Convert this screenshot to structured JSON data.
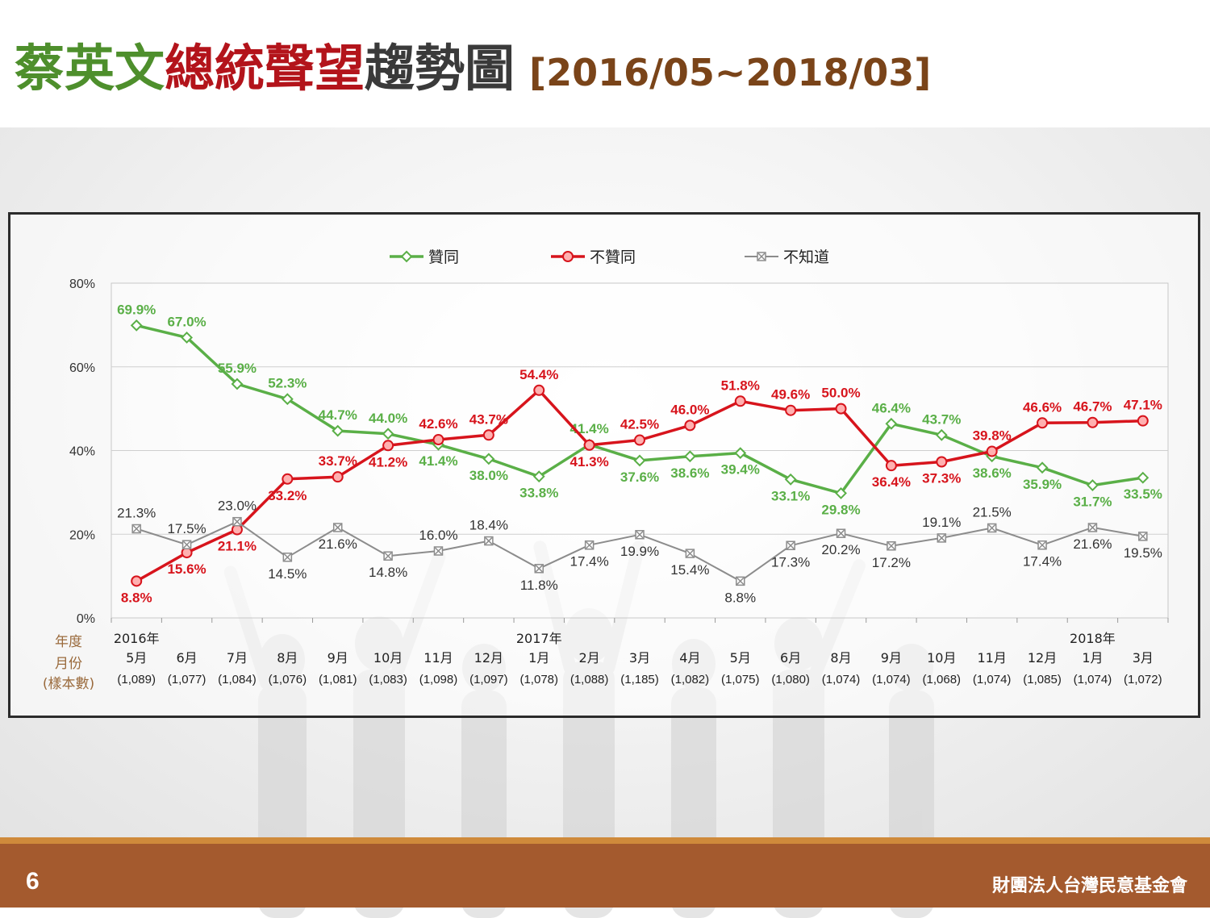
{
  "title": {
    "part1": "蔡英文",
    "part2": "總統聲望",
    "part3": "趨勢圖",
    "range": "[2016/05~2018/03]",
    "colors": {
      "part1": "#4e8f2c",
      "part2": "#b3141b",
      "part3": "#3a3a3a",
      "range": "#7a4419"
    }
  },
  "footer": {
    "page_number": "6",
    "organization": "財團法人台灣民意基金會"
  },
  "chart_data": {
    "type": "line",
    "ylim": [
      0,
      80
    ],
    "yticks": [
      "0%",
      "20%",
      "40%",
      "60%",
      "80%"
    ],
    "grid": true,
    "legend_position": "top",
    "row_labels": [
      "年度",
      "月份",
      "(樣本數)"
    ],
    "categories": [
      {
        "year": "2016年",
        "month": "5月",
        "sample": "(1,089)"
      },
      {
        "year": "",
        "month": "6月",
        "sample": "(1,077)"
      },
      {
        "year": "",
        "month": "7月",
        "sample": "(1,084)"
      },
      {
        "year": "",
        "month": "8月",
        "sample": "(1,076)"
      },
      {
        "year": "",
        "month": "9月",
        "sample": "(1,081)"
      },
      {
        "year": "",
        "month": "10月",
        "sample": "(1,083)"
      },
      {
        "year": "",
        "month": "11月",
        "sample": "(1,098)"
      },
      {
        "year": "",
        "month": "12月",
        "sample": "(1,097)"
      },
      {
        "year": "2017年",
        "month": "1月",
        "sample": "(1,078)"
      },
      {
        "year": "",
        "month": "2月",
        "sample": "(1,088)"
      },
      {
        "year": "",
        "month": "3月",
        "sample": "(1,185)"
      },
      {
        "year": "",
        "month": "4月",
        "sample": "(1,082)"
      },
      {
        "year": "",
        "month": "5月",
        "sample": "(1,075)"
      },
      {
        "year": "",
        "month": "6月",
        "sample": "(1,080)"
      },
      {
        "year": "",
        "month": "8月",
        "sample": "(1,074)"
      },
      {
        "year": "",
        "month": "9月",
        "sample": "(1,074)"
      },
      {
        "year": "",
        "month": "10月",
        "sample": "(1,068)"
      },
      {
        "year": "",
        "month": "11月",
        "sample": "(1,074)"
      },
      {
        "year": "",
        "month": "12月",
        "sample": "(1,085)"
      },
      {
        "year": "2018年",
        "month": "1月",
        "sample": "(1,074)"
      },
      {
        "year": "",
        "month": "3月",
        "sample": "(1,072)"
      }
    ],
    "series": [
      {
        "name": "贊同",
        "color": "#5aaf47",
        "marker": "diamond",
        "values": [
          69.9,
          67.0,
          55.9,
          52.3,
          44.7,
          44.0,
          41.4,
          38.0,
          33.8,
          41.4,
          37.6,
          38.6,
          39.4,
          33.1,
          29.8,
          46.4,
          43.7,
          38.6,
          35.9,
          31.7,
          33.5
        ],
        "labels": [
          "69.9%",
          "67.0%",
          "55.9%",
          "52.3%",
          "44.7%",
          "44.0%",
          "41.4%",
          "38.0%",
          "33.8%",
          "41.4%",
          "37.6%",
          "38.6%",
          "39.4%",
          "33.1%",
          "29.8%",
          "46.4%",
          "43.7%",
          "38.6%",
          "35.9%",
          "31.7%",
          "33.5%"
        ]
      },
      {
        "name": "不贊同",
        "color": "#d7141c",
        "marker": "circle",
        "values": [
          8.8,
          15.6,
          21.1,
          33.2,
          33.7,
          41.2,
          42.6,
          43.7,
          54.4,
          41.3,
          42.5,
          46.0,
          51.8,
          49.6,
          50.0,
          36.4,
          37.3,
          39.8,
          46.6,
          46.7,
          47.1
        ],
        "labels": [
          "8.8%",
          "15.6%",
          "21.1%",
          "33.2%",
          "33.7%",
          "41.2%",
          "42.6%",
          "43.7%",
          "54.4%",
          "41.3%",
          "42.5%",
          "46.0%",
          "51.8%",
          "49.6%",
          "50.0%",
          "36.4%",
          "37.3%",
          "39.8%",
          "46.6%",
          "46.7%",
          "47.1%"
        ]
      },
      {
        "name": "不知道",
        "color": "#8c8c8c",
        "marker": "x-square",
        "values": [
          21.3,
          17.5,
          23.0,
          14.5,
          21.6,
          14.8,
          16.0,
          18.4,
          11.8,
          17.4,
          19.9,
          15.4,
          8.8,
          17.3,
          20.2,
          17.2,
          19.1,
          21.5,
          17.4,
          21.6,
          19.5
        ],
        "labels": [
          "21.3%",
          "17.5%",
          "23.0%",
          "14.5%",
          "21.6%",
          "14.8%",
          "16.0%",
          "18.4%",
          "11.8%",
          "17.4%",
          "19.9%",
          "15.4%",
          "8.8%",
          "17.3%",
          "20.2%",
          "17.2%",
          "19.1%",
          "21.5%",
          "17.4%",
          "21.6%",
          "19.5%"
        ]
      }
    ]
  }
}
